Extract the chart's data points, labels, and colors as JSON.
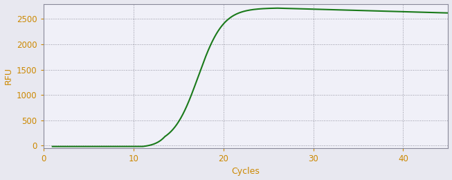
{
  "xlabel": "Cycles",
  "ylabel": "RFU",
  "xlim": [
    0,
    45
  ],
  "ylim": [
    -50,
    2800
  ],
  "xticks": [
    0,
    10,
    20,
    30,
    40
  ],
  "yticks": [
    0,
    500,
    1000,
    1500,
    2000,
    2500
  ],
  "line_color": "#1a7a1a",
  "line_width": 1.5,
  "plot_bg_color": "#f0f0f8",
  "fig_bg_color": "#e8e8f0",
  "grid_color": "#555566",
  "grid_alpha": 0.6,
  "axis_label_color": "#cc8800",
  "tick_label_color": "#cc8800",
  "spine_color": "#888899",
  "sigmoid_L": 2720,
  "sigmoid_k": 0.72,
  "sigmoid_x0": 17.2,
  "x_start": 1,
  "x_end": 45,
  "figsize": [
    6.53,
    2.6
  ],
  "dpi": 100
}
